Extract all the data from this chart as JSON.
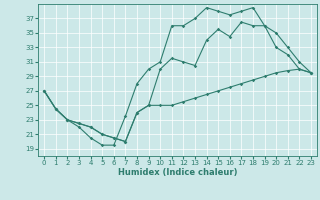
{
  "xlabel": "Humidex (Indice chaleur)",
  "background_color": "#cce8e8",
  "line_color": "#2e7d6e",
  "xlim": [
    -0.5,
    23.5
  ],
  "ylim": [
    18,
    39
  ],
  "xticks": [
    0,
    1,
    2,
    3,
    4,
    5,
    6,
    7,
    8,
    9,
    10,
    11,
    12,
    13,
    14,
    15,
    16,
    17,
    18,
    19,
    20,
    21,
    22,
    23
  ],
  "yticks": [
    19,
    21,
    23,
    25,
    27,
    29,
    31,
    33,
    35,
    37
  ],
  "line1_x": [
    0,
    1,
    2,
    3,
    4,
    5,
    6,
    7,
    8,
    9,
    10,
    11,
    12,
    13,
    14,
    15,
    16,
    17,
    18,
    19,
    20,
    21,
    22,
    23
  ],
  "line1_y": [
    27,
    24.5,
    23,
    22,
    20.5,
    19.5,
    19.5,
    23.5,
    28,
    30,
    31,
    36,
    36,
    37,
    38.5,
    38,
    37.5,
    38,
    38.5,
    36,
    33,
    32,
    30,
    29.5
  ],
  "line2_x": [
    0,
    1,
    2,
    3,
    4,
    5,
    6,
    7,
    8,
    9,
    10,
    11,
    12,
    13,
    14,
    15,
    16,
    17,
    18,
    19,
    20,
    21,
    22,
    23
  ],
  "line2_y": [
    27,
    24.5,
    23,
    22.5,
    22,
    21,
    20.5,
    20,
    24,
    25,
    30,
    31.5,
    31,
    30.5,
    34,
    35.5,
    34.5,
    36.5,
    36,
    36,
    35,
    33,
    31,
    29.5
  ],
  "line3_x": [
    0,
    1,
    2,
    3,
    4,
    5,
    6,
    7,
    8,
    9,
    10,
    11,
    12,
    13,
    14,
    15,
    16,
    17,
    18,
    19,
    20,
    21,
    22,
    23
  ],
  "line3_y": [
    27,
    24.5,
    23,
    22.5,
    22,
    21,
    20.5,
    20,
    24,
    25,
    25,
    25,
    25.5,
    26,
    26.5,
    27,
    27.5,
    28,
    28.5,
    29,
    29.5,
    29.8,
    30,
    29.5
  ]
}
